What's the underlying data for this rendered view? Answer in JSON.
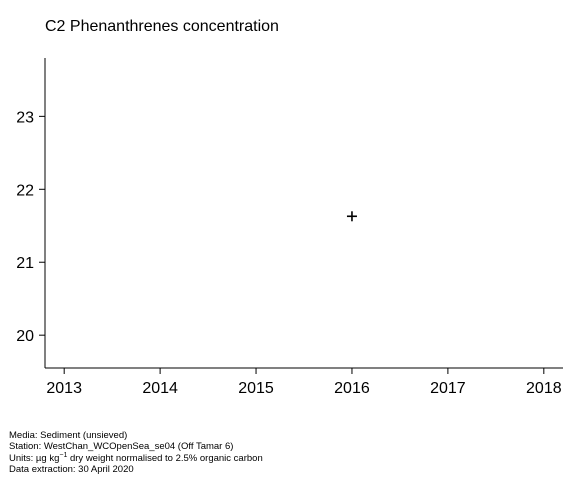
{
  "chart_data": {
    "type": "scatter",
    "title": "C2 Phenanthrenes concentration",
    "xlabel": "",
    "ylabel": "",
    "x_ticks": [
      2013,
      2014,
      2015,
      2016,
      2017,
      2018
    ],
    "y_ticks": [
      20,
      21,
      22,
      23
    ],
    "xlim": [
      2012.8,
      2018.2
    ],
    "ylim": [
      19.55,
      23.8
    ],
    "grid": false,
    "marker": "+",
    "series": [
      {
        "x": [
          2016
        ],
        "y": [
          21.63
        ]
      }
    ]
  },
  "footer": {
    "media": "Media: Sediment (unsieved)",
    "station": "Station: WestChan_WCOpenSea_se04 (Off Tamar 6)",
    "units_prefix": "Units:  µg kg",
    "units_sup": "−1",
    "units_suffix": " dry weight normalised to 2.5% organic carbon",
    "extraction": "Data extraction: 30 April 2020"
  }
}
